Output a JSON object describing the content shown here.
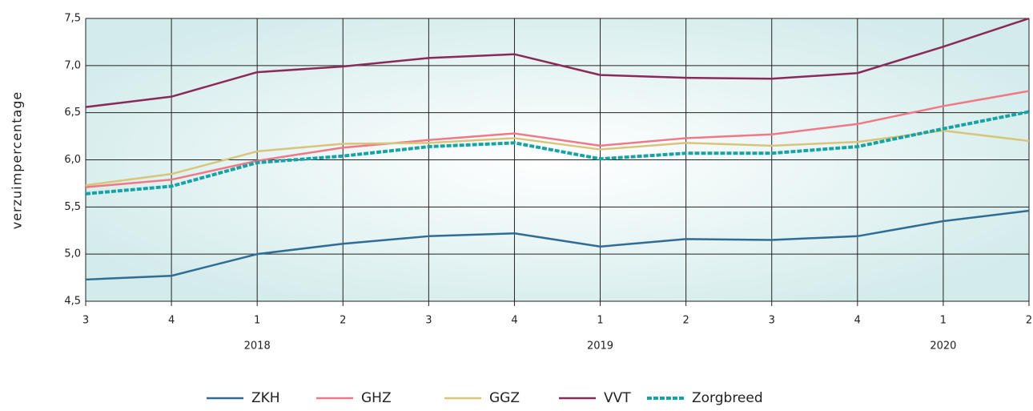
{
  "chart_data": {
    "type": "line",
    "y_label": "verzuimpercentage",
    "categories": [
      "3",
      "4",
      "1",
      "2",
      "3",
      "4",
      "1",
      "2",
      "3",
      "4",
      "1",
      "2"
    ],
    "category_groups": [
      null,
      null,
      "2018",
      null,
      null,
      null,
      "2019",
      null,
      null,
      null,
      "2020",
      null
    ],
    "ylim": [
      4.5,
      7.5
    ],
    "yticks": [
      {
        "value": 4.5,
        "label": "4,5"
      },
      {
        "value": 5.0,
        "label": "5,0"
      },
      {
        "value": 5.5,
        "label": "5,5"
      },
      {
        "value": 6.0,
        "label": "6,0"
      },
      {
        "value": 6.5,
        "label": "6,5"
      },
      {
        "value": 7.0,
        "label": "7,0"
      },
      {
        "value": 7.5,
        "label": "7,5"
      }
    ],
    "grid": true,
    "legend": "bottom",
    "series": [
      {
        "name": "ZKH",
        "color": "#2f6d95",
        "dashed": false,
        "values": [
          4.73,
          4.77,
          5.0,
          5.11,
          5.19,
          5.22,
          5.08,
          5.16,
          5.15,
          5.19,
          5.35,
          5.46
        ]
      },
      {
        "name": "GHZ",
        "color": "#f07887",
        "dashed": false,
        "values": [
          5.71,
          5.79,
          5.99,
          6.13,
          6.21,
          6.28,
          6.15,
          6.23,
          6.27,
          6.38,
          6.57,
          6.73
        ]
      },
      {
        "name": "GGZ",
        "color": "#d9c57a",
        "dashed": false,
        "values": [
          5.73,
          5.85,
          6.09,
          6.17,
          6.18,
          6.23,
          6.11,
          6.18,
          6.15,
          6.19,
          6.31,
          6.2
        ]
      },
      {
        "name": "VVT",
        "color": "#8a2a59",
        "dashed": false,
        "values": [
          6.56,
          6.67,
          6.93,
          6.99,
          7.08,
          7.12,
          6.9,
          6.87,
          6.86,
          6.92,
          7.2,
          7.5
        ]
      },
      {
        "name": "Zorgbreed",
        "color": "#17a2a6",
        "dashed": true,
        "values": [
          5.64,
          5.72,
          5.97,
          6.04,
          6.14,
          6.18,
          6.01,
          6.07,
          6.07,
          6.14,
          6.33,
          6.51
        ]
      }
    ]
  }
}
